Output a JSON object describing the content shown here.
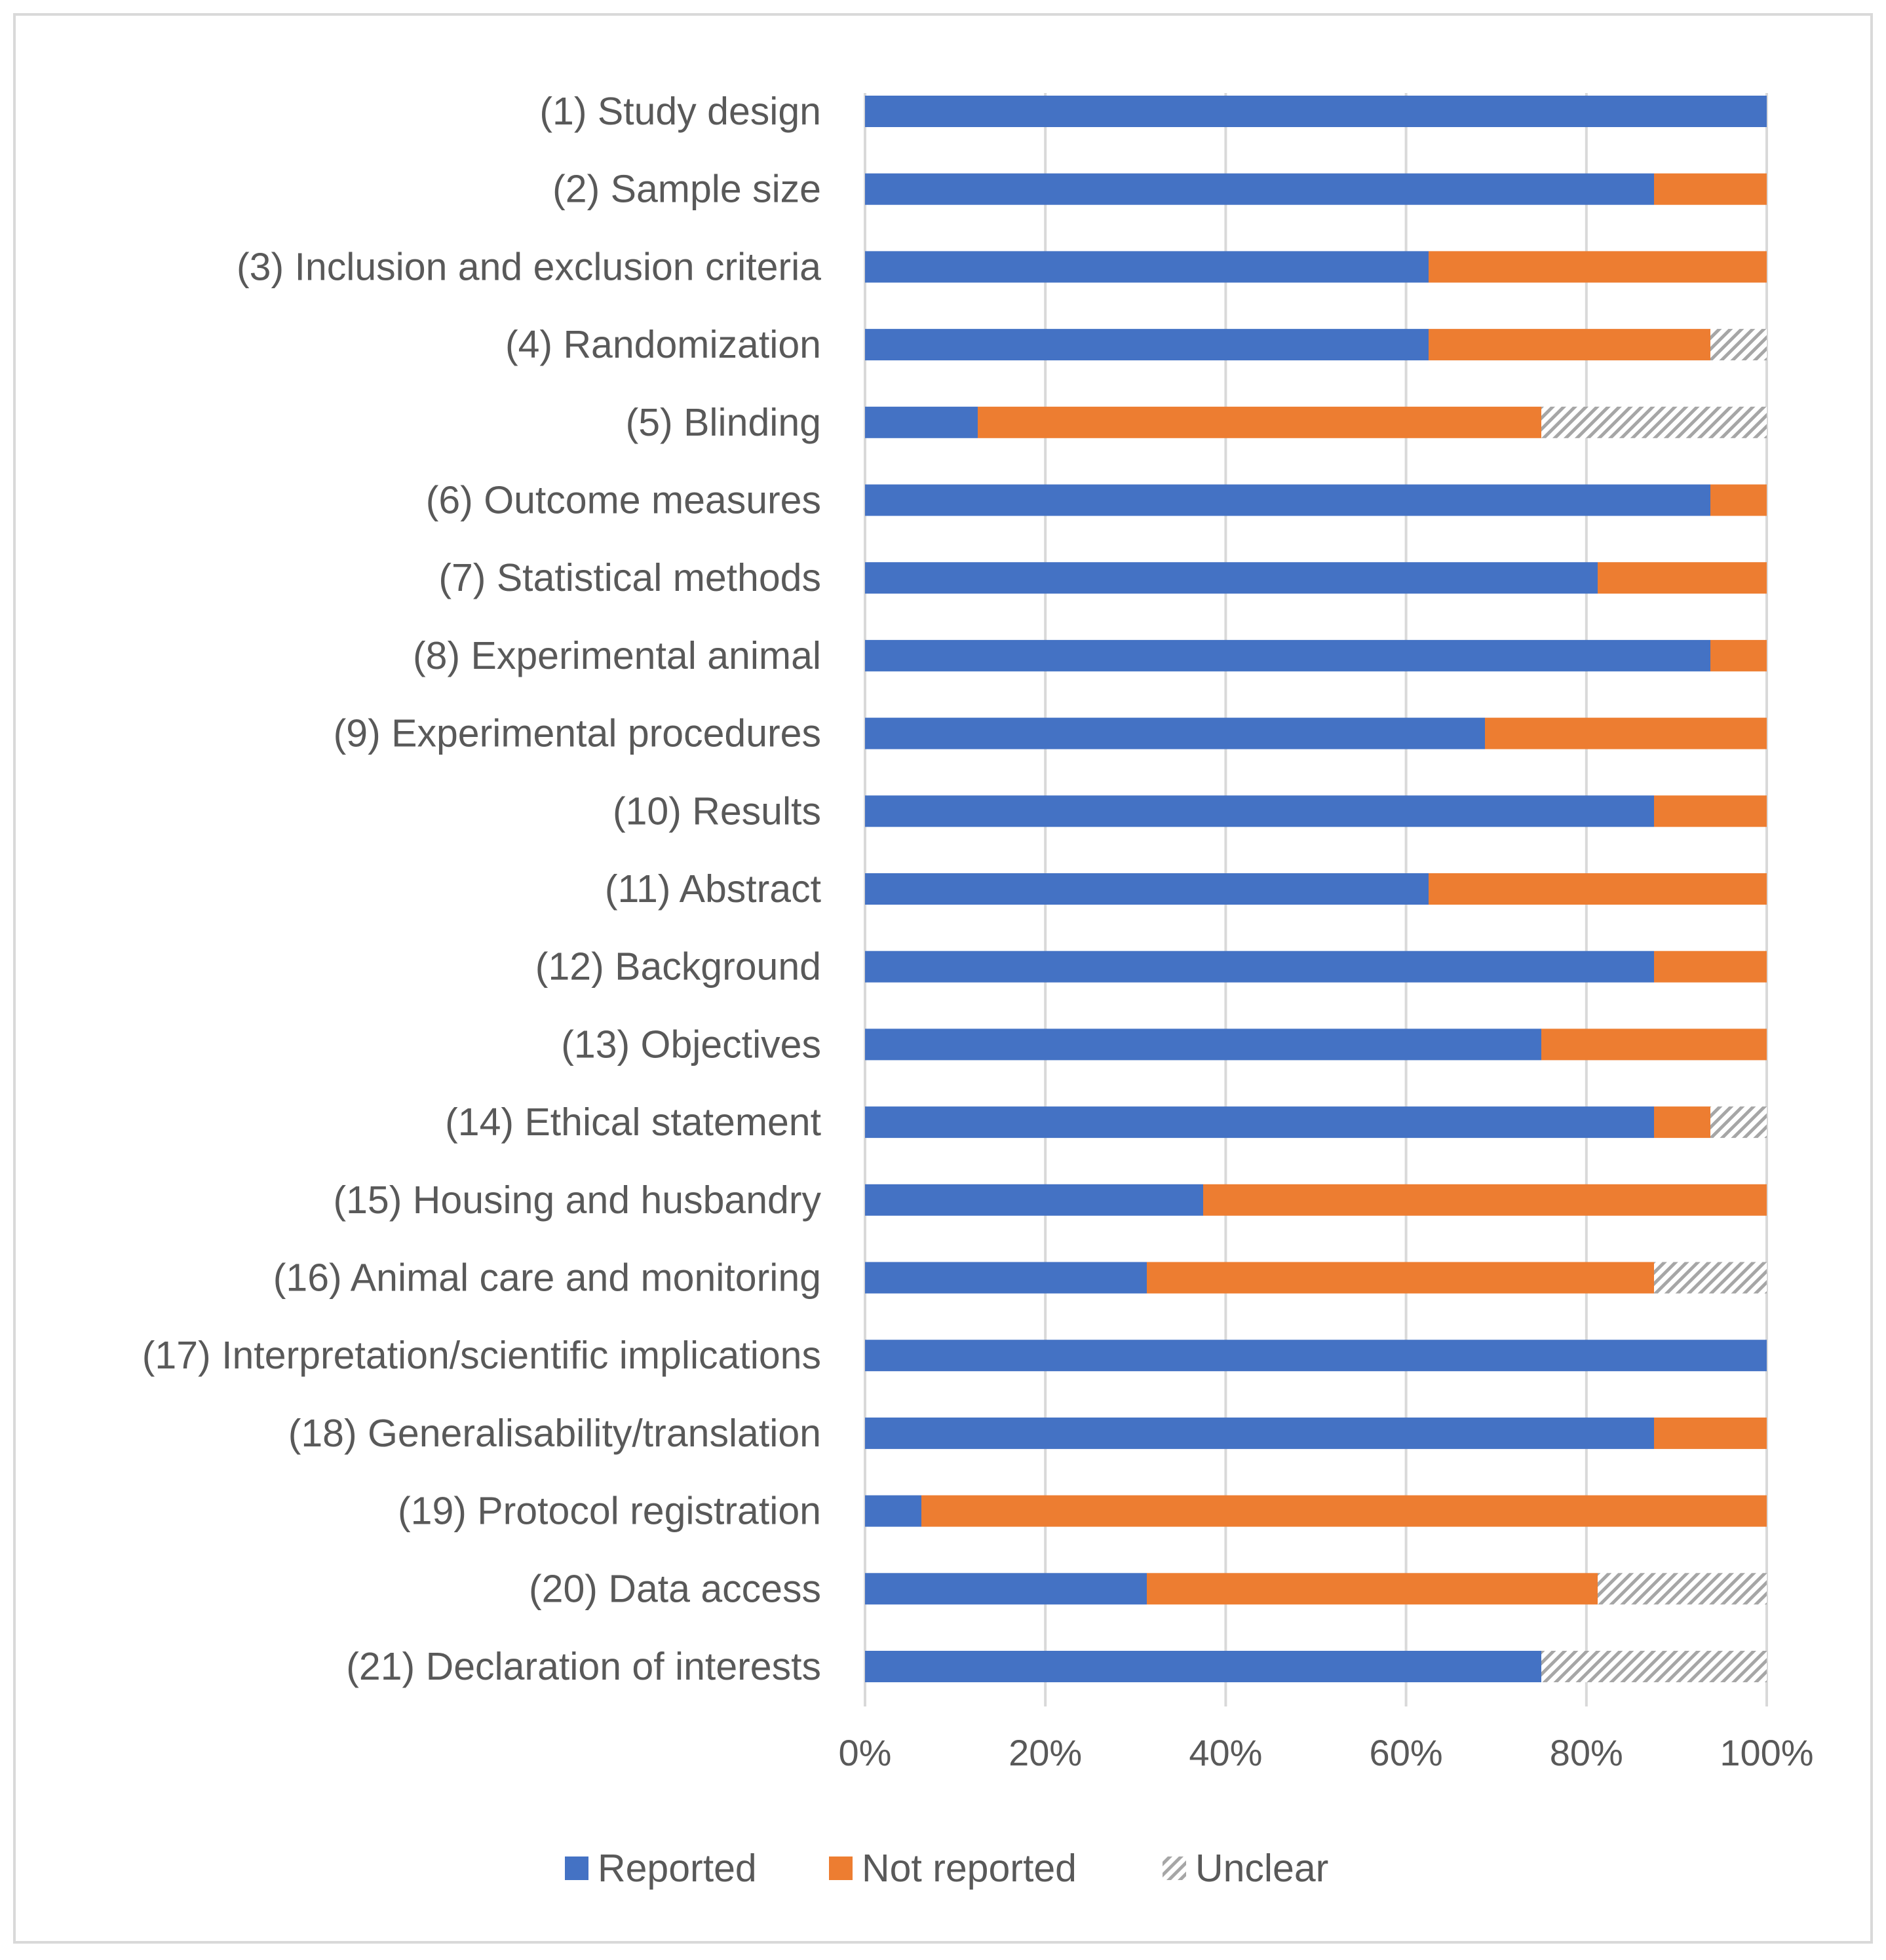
{
  "chart_data": {
    "type": "bar",
    "orientation": "horizontal",
    "stacked": true,
    "percent": true,
    "title": "",
    "xlabel": "",
    "ylabel": "",
    "xlim": [
      0,
      100
    ],
    "x_ticks": [
      "0%",
      "20%",
      "40%",
      "60%",
      "80%",
      "100%"
    ],
    "grid": true,
    "legend_position": "bottom",
    "categories": [
      "(1) Study design",
      "(2) Sample size",
      "(3) Inclusion and exclusion criteria",
      "(4) Randomization",
      "(5) Blinding",
      "(6) Outcome measures",
      "(7) Statistical methods",
      "(8) Experimental animal",
      "(9) Experimental procedures",
      "(10) Results",
      "(11) Abstract",
      "(12) Background",
      "(13) Objectives",
      "(14) Ethical statement",
      "(15) Housing and husbandry",
      "(16) Animal care and monitoring",
      "(17) Interpretation/scientific implications",
      "(18) Generalisability/translation",
      "(19) Protocol registration",
      "(20) Data access",
      "(21) Declaration of interests"
    ],
    "series": [
      {
        "name": "Reported",
        "color": "#4472C4",
        "pattern": "solid",
        "values": [
          100,
          87.5,
          62.5,
          62.5,
          12.5,
          93.75,
          81.25,
          93.75,
          68.75,
          87.5,
          62.5,
          87.5,
          75,
          87.5,
          37.5,
          31.25,
          100,
          87.5,
          6.25,
          31.25,
          75
        ]
      },
      {
        "name": "Not reported",
        "color": "#ED7D31",
        "pattern": "solid",
        "values": [
          0,
          12.5,
          37.5,
          31.25,
          62.5,
          6.25,
          18.75,
          6.25,
          31.25,
          12.5,
          37.5,
          12.5,
          25,
          6.25,
          62.5,
          56.25,
          0,
          12.5,
          93.75,
          50,
          0
        ]
      },
      {
        "name": "Unclear",
        "color": "#A6A6A6",
        "pattern": "hatch",
        "values": [
          0,
          0,
          0,
          6.25,
          25,
          0,
          0,
          0,
          0,
          0,
          0,
          0,
          0,
          6.25,
          0,
          12.5,
          0,
          0,
          0,
          18.75,
          25
        ]
      }
    ]
  }
}
